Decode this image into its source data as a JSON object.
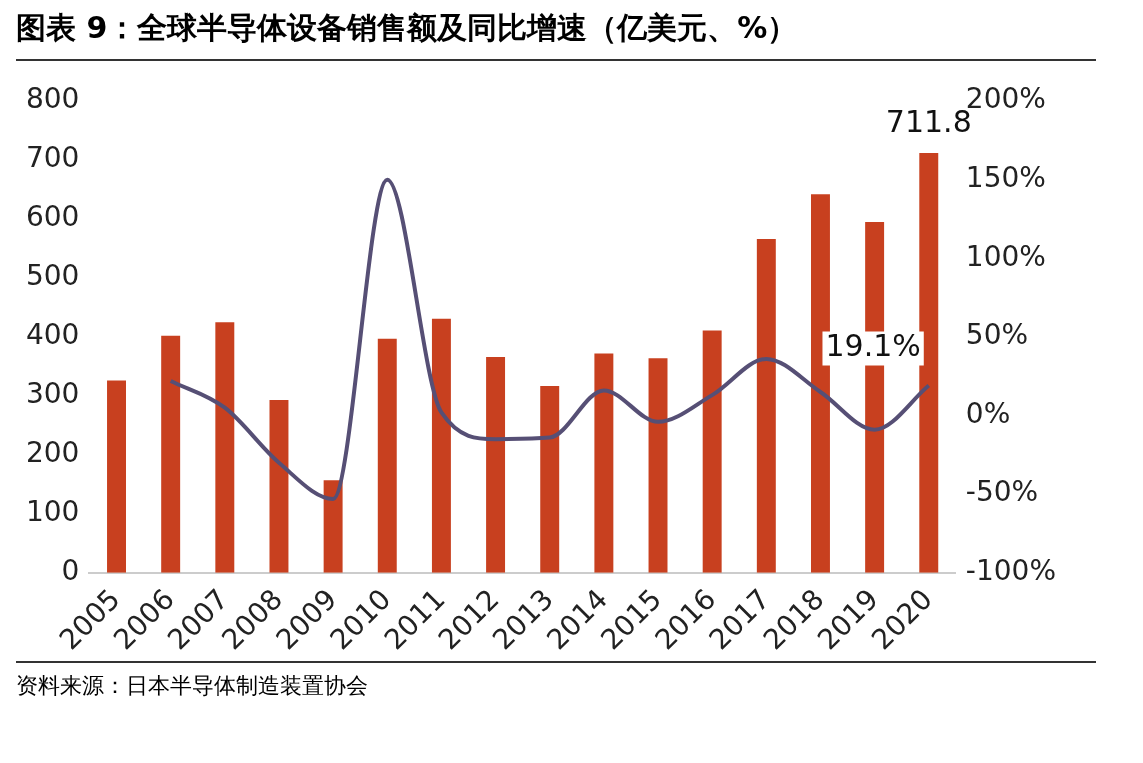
{
  "chart_data": {
    "type": "bar",
    "title": "图表 9：全球半导体设备销售额及同比增速（亿美元、%）",
    "categories": [
      "2005",
      "2006",
      "2007",
      "2008",
      "2009",
      "2010",
      "2011",
      "2012",
      "2013",
      "2014",
      "2015",
      "2016",
      "2017",
      "2018",
      "2019",
      "2020"
    ],
    "series": [
      {
        "color": "#c8401f",
        "values": [
          326,
          402,
          425,
          293,
          157,
          397,
          431,
          366,
          317,
          372,
          364,
          411,
          566,
          642,
          595,
          711.8
        ],
        "value_labels": [
          null,
          null,
          null,
          null,
          null,
          null,
          null,
          null,
          null,
          null,
          null,
          null,
          null,
          null,
          null,
          "711.8"
        ]
      },
      {
        "type": "line",
        "axis": "y2",
        "color": "#564f75",
        "values": [
          null,
          22,
          5,
          -30,
          -53,
          150,
          2,
          -15,
          -14,
          16,
          -4,
          13,
          36,
          15,
          -9,
          19.1
        ],
        "value_labels": [
          null,
          null,
          null,
          null,
          null,
          null,
          null,
          null,
          null,
          null,
          null,
          null,
          null,
          null,
          null,
          "19.1%"
        ]
      }
    ],
    "ylim": [
      0,
      800
    ],
    "yticks": [
      0,
      100,
      200,
      300,
      400,
      500,
      600,
      700,
      800
    ],
    "y2lim": [
      -100,
      200
    ],
    "y2ticks": [
      {
        "value": -100,
        "label": "-100%"
      },
      {
        "value": -50,
        "label": "-50%"
      },
      {
        "value": 0,
        "label": "0%"
      },
      {
        "value": 50,
        "label": "50%"
      },
      {
        "value": 100,
        "label": "100%"
      },
      {
        "value": 150,
        "label": "150%"
      },
      {
        "value": 200,
        "label": "200%"
      }
    ],
    "grid": false,
    "legend": false,
    "marker": "none",
    "annotations": [
      "资料来源：日本半导体制造装置协会"
    ]
  }
}
